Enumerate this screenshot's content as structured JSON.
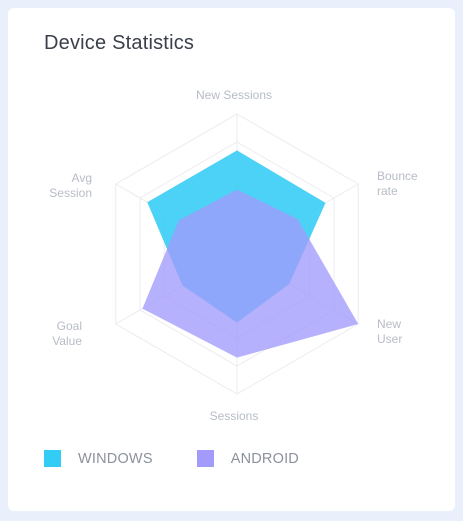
{
  "card": {
    "title": "Device Statistics"
  },
  "chart_data": {
    "type": "radar",
    "title": "Device Statistics",
    "axes": [
      {
        "key": "new_sessions",
        "lines": [
          "New Sessions"
        ]
      },
      {
        "key": "bounce_rate",
        "lines": [
          "Bounce",
          "rate"
        ]
      },
      {
        "key": "new_user",
        "lines": [
          "New",
          "User"
        ]
      },
      {
        "key": "sessions",
        "lines": [
          "Sessions"
        ]
      },
      {
        "key": "goal_value",
        "lines": [
          "Goal",
          "Value"
        ]
      },
      {
        "key": "avg_session",
        "lines": [
          "Avg",
          "Session"
        ]
      }
    ],
    "max": 100,
    "grid_levels": 5,
    "series": [
      {
        "name": "WINDOWS",
        "color": "#33ccf5",
        "values": [
          74,
          73,
          43,
          49,
          45,
          74
        ]
      },
      {
        "name": "ANDROID",
        "color": "#a29bfb",
        "values": [
          46,
          50,
          100,
          74,
          78,
          48
        ]
      }
    ],
    "legend_position": "bottom-left"
  }
}
